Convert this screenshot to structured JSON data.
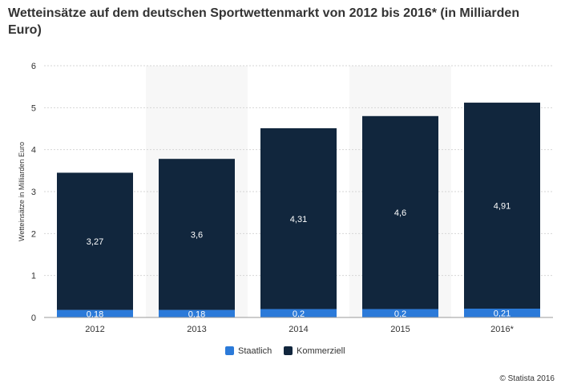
{
  "chart_data": {
    "type": "bar",
    "stacked": true,
    "title": "Wetteinsätze auf dem deutschen Sportwettenmarkt von 2012 bis 2016* (in Milliarden Euro)",
    "xlabel": "",
    "ylabel": "Wetteinsätze in Milliarden Euro",
    "ylim": [
      0,
      6
    ],
    "yticks": [
      "0",
      "1",
      "2",
      "3",
      "4",
      "5",
      "6"
    ],
    "categories": [
      "2012",
      "2013",
      "2014",
      "2015",
      "2016*"
    ],
    "series": [
      {
        "name": "Staatlich",
        "color": "#2b7ad9",
        "values": [
          0.18,
          0.18,
          0.2,
          0.2,
          0.21
        ],
        "labels": [
          "0,18",
          "0,18",
          "0,2",
          "0,2",
          "0,21"
        ]
      },
      {
        "name": "Kommerziell",
        "color": "#11263d",
        "values": [
          3.27,
          3.6,
          4.31,
          4.6,
          4.91
        ],
        "labels": [
          "3,27",
          "3,6",
          "4,31",
          "4,6",
          "4,91"
        ]
      }
    ],
    "legend_position": "bottom-center",
    "grid": true
  },
  "copyright": "© Statista 2016"
}
